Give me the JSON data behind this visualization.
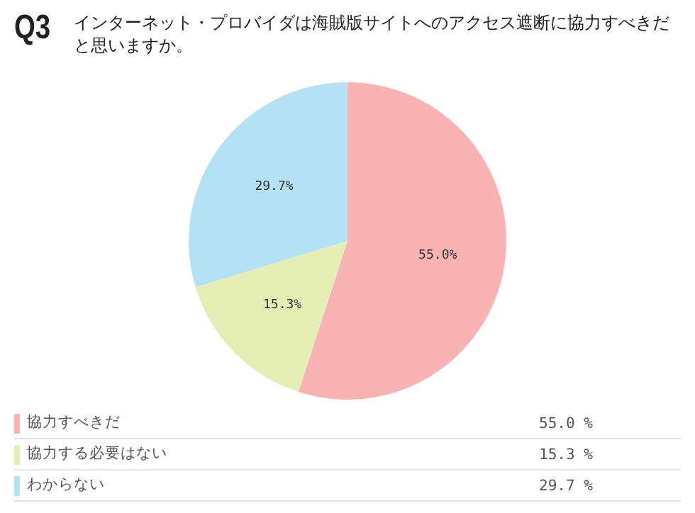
{
  "chart_data": {
    "type": "pie",
    "title": "Q3",
    "subtitle": "インターネット・プロバイダは海賊版サイトへのアクセス遮断に協力すべきだと思いますか。",
    "categories": [
      "協力すべきだ",
      "協力する必要はない",
      "わからない"
    ],
    "values": [
      55.0,
      15.3,
      29.7
    ],
    "value_labels": [
      "55.0%",
      "15.3%",
      "29.7%"
    ],
    "annotations": [
      "55.0 %",
      "15.3 %",
      "29.7 %"
    ],
    "colors": [
      "#f9b3b3",
      "#e5efb5",
      "#b5e1f5"
    ],
    "legend": "bottom"
  }
}
